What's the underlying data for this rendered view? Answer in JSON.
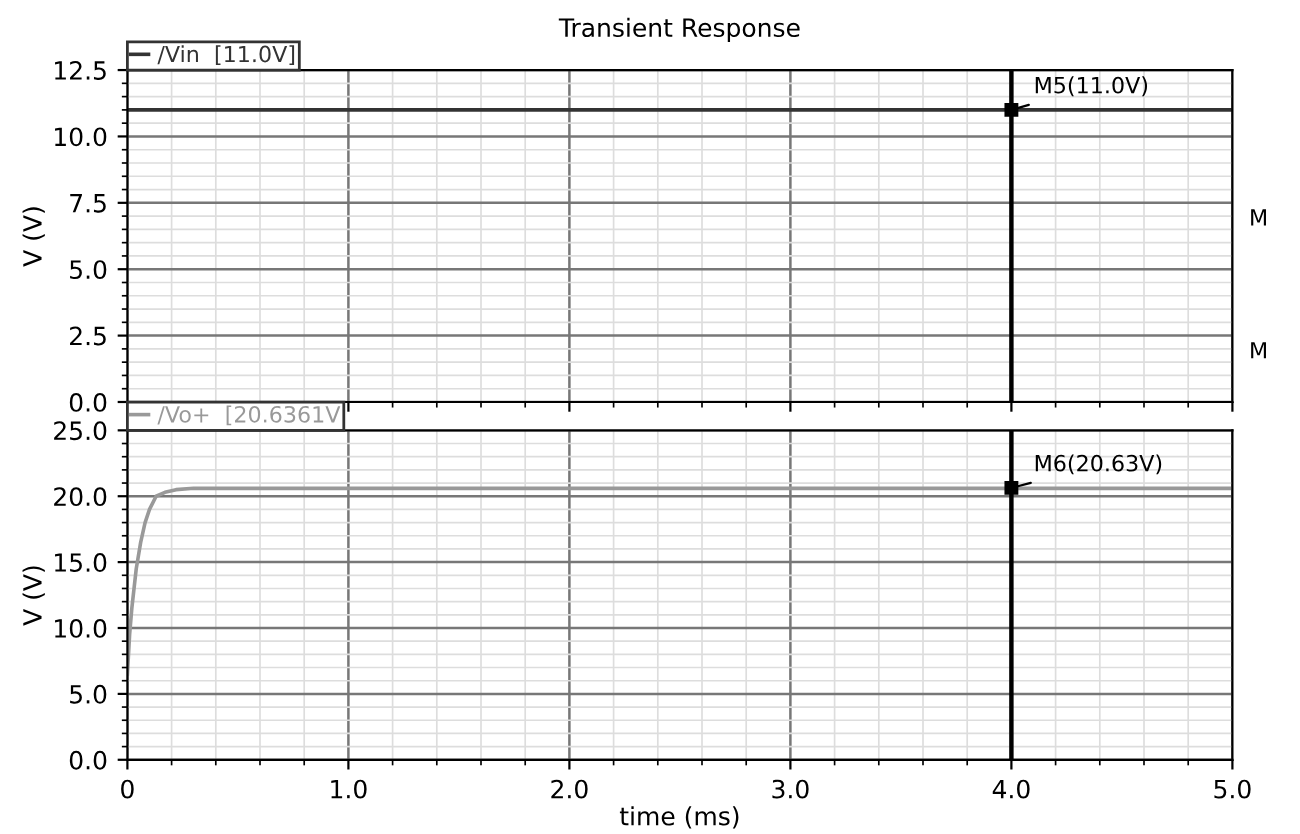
{
  "chart_data": [
    {
      "type": "line",
      "title": "Transient Response",
      "ylabel": "V (V)",
      "x": [
        0,
        5
      ],
      "series": [
        {
          "name": "/Vin  [11.0V]",
          "color": "#333333",
          "values": [
            11.0,
            11.0
          ]
        }
      ],
      "xlim": [
        0,
        5
      ],
      "xticks": [
        {
          "value": 0,
          "label": null
        },
        {
          "value": 1,
          "label": null
        },
        {
          "value": 2,
          "label": null
        },
        {
          "value": 3,
          "label": null
        },
        {
          "value": 4,
          "label": null
        },
        {
          "value": 5,
          "label": null
        }
      ],
      "ylim": [
        0,
        12.5
      ],
      "yticks": [
        {
          "value": 0,
          "label": "0.0"
        },
        2.5,
        {
          "value": 5,
          "label": "5.0"
        },
        7.5,
        {
          "value": 10,
          "label": "10.0"
        },
        12.5
      ],
      "tick_labels": "y",
      "grid": true,
      "legend": "top left",
      "ref_lines": [
        {
          "axis": "x",
          "value": 4,
          "color": "#000000"
        }
      ],
      "annotations": [
        {
          "text": "M5(11.0V)",
          "x": 4,
          "y": 11.0
        },
        "M",
        "M"
      ]
    },
    {
      "type": "line",
      "xlabel": "time (ms)",
      "ylabel": "V (V)",
      "x": [
        0,
        0.01,
        0.02,
        0.04,
        0.06,
        0.08,
        0.1,
        0.13,
        0.17,
        0.22,
        0.3,
        5
      ],
      "series": [
        {
          "name": "/Vo+  [20.6361V",
          "color": "#999999",
          "values": [
            6.5,
            9.5,
            11.5,
            14.5,
            16.5,
            18.0,
            19.0,
            20.0,
            20.3,
            20.5,
            20.6,
            20.6
          ]
        }
      ],
      "xlim": [
        0,
        5
      ],
      "xticks": [
        0,
        {
          "value": 1,
          "label": "1.0"
        },
        {
          "value": 2,
          "label": "2.0"
        },
        {
          "value": 3,
          "label": "3.0"
        },
        {
          "value": 4,
          "label": "4.0"
        },
        {
          "value": 5,
          "label": "5.0"
        }
      ],
      "ylim": [
        0,
        25
      ],
      "yticks": [
        {
          "value": 0,
          "label": "0.0"
        },
        {
          "value": 5,
          "label": "5.0"
        },
        {
          "value": 10,
          "label": "10.0"
        },
        {
          "value": 15,
          "label": "15.0"
        },
        {
          "value": 20,
          "label": "20.0"
        },
        {
          "value": 25,
          "label": "25.0"
        }
      ],
      "grid": true,
      "legend": "top left",
      "ref_lines": [
        {
          "axis": "x",
          "value": 4,
          "color": "#000000"
        }
      ],
      "annotations": [
        {
          "text": "M6(20.63V)",
          "x": 4,
          "y": 20.63
        }
      ]
    }
  ]
}
